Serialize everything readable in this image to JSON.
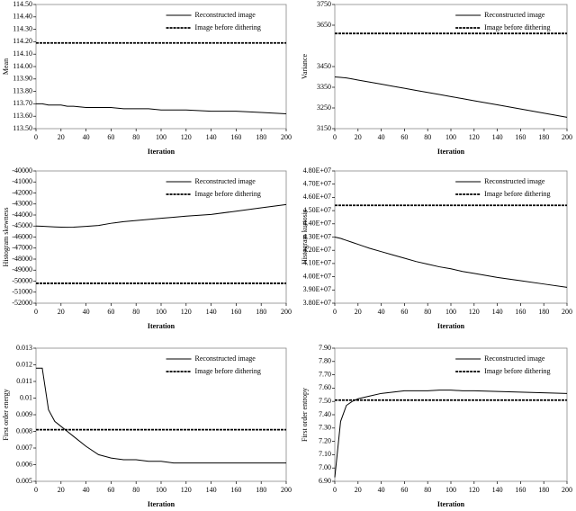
{
  "chart_data": [
    {
      "type": "line",
      "xlabel": "Iteration",
      "ylabel": "Mean",
      "legend": "upper right",
      "x": [
        0,
        5,
        10,
        15,
        20,
        25,
        30,
        40,
        50,
        60,
        70,
        80,
        90,
        100,
        110,
        120,
        140,
        160,
        180,
        200
      ],
      "xlim": [
        0,
        200
      ],
      "xticks": [
        0,
        20,
        40,
        60,
        80,
        100,
        120,
        140,
        160,
        180,
        200
      ],
      "ylim": [
        113.5,
        114.5
      ],
      "yticks": [
        {
          "value": 113.5,
          "label": "113.50"
        },
        {
          "value": 113.6,
          "label": "113.60"
        },
        {
          "value": 113.7,
          "label": "113.70"
        },
        {
          "value": 113.8,
          "label": "113.80"
        },
        {
          "value": 113.9,
          "label": "113.90"
        },
        {
          "value": 114.0,
          "label": "114.00"
        },
        {
          "value": 114.1,
          "label": "114.10"
        },
        {
          "value": 114.2,
          "label": "114.20"
        },
        {
          "value": 114.3,
          "label": "114.30"
        },
        {
          "value": 114.4,
          "label": "114.40"
        },
        {
          "value": 114.5,
          "label": "114.50"
        }
      ],
      "series": [
        {
          "name": "Reconstructed image",
          "color": "#000000",
          "linestyle": "solid",
          "values": [
            113.7,
            113.7,
            113.69,
            113.69,
            113.69,
            113.68,
            113.68,
            113.67,
            113.67,
            113.67,
            113.66,
            113.66,
            113.66,
            113.65,
            113.65,
            113.65,
            113.64,
            113.64,
            113.63,
            113.62
          ]
        },
        {
          "name": "Image before dithering",
          "color": "#000000",
          "linestyle": "dashed",
          "values": [
            114.19,
            114.19,
            114.19,
            114.19,
            114.19,
            114.19,
            114.19,
            114.19,
            114.19,
            114.19,
            114.19,
            114.19,
            114.19,
            114.19,
            114.19,
            114.19,
            114.19,
            114.19,
            114.19,
            114.19
          ]
        }
      ]
    },
    {
      "type": "line",
      "xlabel": "Iteration",
      "ylabel": "Variance",
      "legend": "upper right",
      "x": [
        0,
        5,
        10,
        15,
        20,
        25,
        30,
        40,
        50,
        60,
        70,
        80,
        90,
        100,
        110,
        120,
        140,
        160,
        180,
        200
      ],
      "xlim": [
        0,
        200
      ],
      "xticks": [
        0,
        20,
        40,
        60,
        80,
        100,
        120,
        140,
        160,
        180,
        200
      ],
      "ylim": [
        3150,
        3750
      ],
      "yticks": [
        3150,
        3250,
        3350,
        3450,
        3650,
        3750
      ],
      "series": [
        {
          "name": "Reconstructed image",
          "color": "#000000",
          "linestyle": "solid",
          "values": [
            3400,
            3398,
            3395,
            3390,
            3385,
            3380,
            3375,
            3365,
            3355,
            3345,
            3335,
            3325,
            3315,
            3305,
            3295,
            3285,
            3265,
            3245,
            3225,
            3205
          ]
        },
        {
          "name": "Image before dithering",
          "color": "#000000",
          "linestyle": "dashed",
          "values": [
            3610,
            3610,
            3610,
            3610,
            3610,
            3610,
            3610,
            3610,
            3610,
            3610,
            3610,
            3610,
            3610,
            3610,
            3610,
            3610,
            3610,
            3610,
            3610,
            3610
          ]
        }
      ]
    },
    {
      "type": "line",
      "xlabel": "Iteration",
      "ylabel": "Histogram skewness",
      "legend": "upper right",
      "x": [
        0,
        5,
        10,
        15,
        20,
        25,
        30,
        40,
        50,
        60,
        70,
        80,
        90,
        100,
        110,
        120,
        140,
        160,
        180,
        200
      ],
      "xlim": [
        0,
        200
      ],
      "xticks": [
        0,
        20,
        40,
        60,
        80,
        100,
        120,
        140,
        160,
        180,
        200
      ],
      "ylim": [
        -52000,
        -40000
      ],
      "yticks": [
        -52000,
        -51000,
        -50000,
        -49000,
        -48000,
        -47000,
        -46000,
        -45000,
        -44000,
        -43000,
        -42000,
        -41000,
        -40000
      ],
      "series": [
        {
          "name": "Reconstructed image",
          "color": "#000000",
          "linestyle": "solid",
          "values": [
            -45000,
            -45020,
            -45050,
            -45080,
            -45100,
            -45110,
            -45100,
            -45030,
            -44950,
            -44750,
            -44600,
            -44500,
            -44400,
            -44300,
            -44200,
            -44100,
            -43950,
            -43650,
            -43350,
            -43050
          ]
        },
        {
          "name": "Image before dithering",
          "color": "#000000",
          "linestyle": "dashed",
          "values": [
            -50200,
            -50200,
            -50200,
            -50200,
            -50200,
            -50200,
            -50200,
            -50200,
            -50200,
            -50200,
            -50200,
            -50200,
            -50200,
            -50200,
            -50200,
            -50200,
            -50200,
            -50200,
            -50200,
            -50200
          ]
        }
      ]
    },
    {
      "type": "line",
      "xlabel": "Iteration",
      "ylabel": "Histogram kurtosis",
      "legend": "upper right",
      "x": [
        0,
        5,
        10,
        15,
        20,
        25,
        30,
        40,
        50,
        60,
        70,
        80,
        90,
        100,
        110,
        120,
        140,
        160,
        180,
        200
      ],
      "xlim": [
        0,
        200
      ],
      "xticks": [
        0,
        20,
        40,
        60,
        80,
        100,
        120,
        140,
        160,
        180,
        200
      ],
      "ylim": [
        38000000,
        48000000
      ],
      "yticks": [
        {
          "value": 38000000,
          "label": "3.80E+07"
        },
        {
          "value": 39000000,
          "label": "3.90E+07"
        },
        {
          "value": 40000000,
          "label": "4.00E+07"
        },
        {
          "value": 41000000,
          "label": "4.10E+07"
        },
        {
          "value": 42000000,
          "label": "4.20E+07"
        },
        {
          "value": 43000000,
          "label": "4.30E+07"
        },
        {
          "value": 44000000,
          "label": "4.40E+07"
        },
        {
          "value": 45000000,
          "label": "4.50E+07"
        },
        {
          "value": 46000000,
          "label": "4.60E+07"
        },
        {
          "value": 47000000,
          "label": "4.70E+07"
        },
        {
          "value": 48000000,
          "label": "4.80E+07"
        }
      ],
      "series": [
        {
          "name": "Reconstructed image",
          "color": "#000000",
          "linestyle": "solid",
          "values": [
            43000000,
            42900000,
            42750000,
            42600000,
            42450000,
            42300000,
            42150000,
            41900000,
            41650000,
            41400000,
            41150000,
            40950000,
            40750000,
            40600000,
            40400000,
            40250000,
            39950000,
            39700000,
            39450000,
            39200000
          ]
        },
        {
          "name": "Image before dithering",
          "color": "#000000",
          "linestyle": "dashed",
          "values": [
            45400000,
            45400000,
            45400000,
            45400000,
            45400000,
            45400000,
            45400000,
            45400000,
            45400000,
            45400000,
            45400000,
            45400000,
            45400000,
            45400000,
            45400000,
            45400000,
            45400000,
            45400000,
            45400000,
            45400000
          ]
        }
      ]
    },
    {
      "type": "line",
      "xlabel": "Iteration",
      "ylabel": "First order energy",
      "legend": "upper right",
      "x": [
        0,
        5,
        10,
        15,
        20,
        25,
        30,
        40,
        50,
        60,
        70,
        80,
        90,
        100,
        110,
        120,
        140,
        160,
        180,
        200
      ],
      "xlim": [
        0,
        200
      ],
      "xticks": [
        0,
        20,
        40,
        60,
        80,
        100,
        120,
        140,
        160,
        180,
        200
      ],
      "ylim": [
        0.005,
        0.013
      ],
      "yticks": [
        0.005,
        0.006,
        0.007,
        0.008,
        0.009,
        0.01,
        0.011,
        0.012,
        0.013
      ],
      "series": [
        {
          "name": "Reconstructed image",
          "color": "#000000",
          "linestyle": "solid",
          "values": [
            0.0118,
            0.0118,
            0.0093,
            0.0086,
            0.0083,
            0.008,
            0.0077,
            0.0071,
            0.0066,
            0.0064,
            0.0063,
            0.0063,
            0.0062,
            0.0062,
            0.0061,
            0.0061,
            0.0061,
            0.0061,
            0.0061,
            0.0061
          ]
        },
        {
          "name": "Image before dithering",
          "color": "#000000",
          "linestyle": "dashed",
          "values": [
            0.0081,
            0.0081,
            0.0081,
            0.0081,
            0.0081,
            0.0081,
            0.0081,
            0.0081,
            0.0081,
            0.0081,
            0.0081,
            0.0081,
            0.0081,
            0.0081,
            0.0081,
            0.0081,
            0.0081,
            0.0081,
            0.0081,
            0.0081
          ]
        }
      ]
    },
    {
      "type": "line",
      "xlabel": "Iteration",
      "ylabel": "First order entropy",
      "legend": "upper right",
      "x": [
        0,
        5,
        10,
        15,
        20,
        25,
        30,
        40,
        50,
        60,
        70,
        80,
        90,
        100,
        110,
        120,
        140,
        160,
        180,
        200
      ],
      "xlim": [
        0,
        200
      ],
      "xticks": [
        0,
        20,
        40,
        60,
        80,
        100,
        120,
        140,
        160,
        180,
        200
      ],
      "ylim": [
        6.9,
        7.9
      ],
      "yticks": [
        {
          "value": 6.9,
          "label": "6.90"
        },
        {
          "value": 7.0,
          "label": "7.00"
        },
        {
          "value": 7.1,
          "label": "7.10"
        },
        {
          "value": 7.2,
          "label": "7.20"
        },
        {
          "value": 7.3,
          "label": "7.30"
        },
        {
          "value": 7.4,
          "label": "7.40"
        },
        {
          "value": 7.5,
          "label": "7.50"
        },
        {
          "value": 7.6,
          "label": "7.60"
        },
        {
          "value": 7.7,
          "label": "7.70"
        },
        {
          "value": 7.8,
          "label": "7.80"
        },
        {
          "value": 7.9,
          "label": "7.90"
        }
      ],
      "series": [
        {
          "name": "Reconstructed image",
          "color": "#000000",
          "linestyle": "solid",
          "values": [
            6.93,
            7.35,
            7.47,
            7.5,
            7.52,
            7.53,
            7.54,
            7.56,
            7.57,
            7.58,
            7.58,
            7.58,
            7.585,
            7.585,
            7.58,
            7.58,
            7.575,
            7.57,
            7.565,
            7.56
          ]
        },
        {
          "name": "Image before dithering",
          "color": "#000000",
          "linestyle": "dashed",
          "values": [
            7.51,
            7.51,
            7.51,
            7.51,
            7.51,
            7.51,
            7.51,
            7.51,
            7.51,
            7.51,
            7.51,
            7.51,
            7.51,
            7.51,
            7.51,
            7.51,
            7.51,
            7.51,
            7.51,
            7.51
          ]
        }
      ]
    }
  ]
}
